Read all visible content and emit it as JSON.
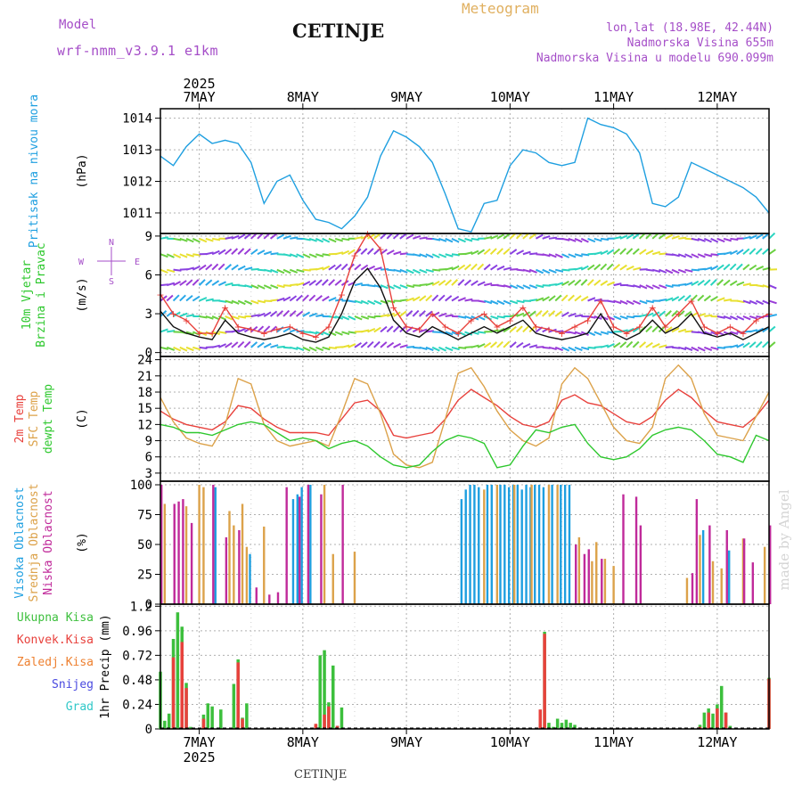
{
  "header": {
    "model_label": "Model",
    "model_name": "wrf-nmm_v3.9.1  e1km",
    "station": "CETINJE",
    "product": "Meteogram",
    "coords": "lon,lat (18.98E, 42.44N)",
    "elevation": "Nadmorska Visina 655m",
    "model_elevation": "Nadmorska Visina u modelu 690.099m",
    "watermark": "made by Angel",
    "footer_station": "CETINJE"
  },
  "time_axis": {
    "year": "2025",
    "day_labels": [
      "7MAY",
      "8MAY",
      "9MAY",
      "10MAY",
      "11MAY",
      "12MAY"
    ],
    "start_hour": 15,
    "end_hour": 156
  },
  "colors": {
    "pressure": "#1e9fe0",
    "temp2m": "#e8413c",
    "sfc_temp": "#dca24a",
    "dewpoint": "#2ec82e",
    "cloud_high": "#1e9fe0",
    "cloud_mid": "#dca24a",
    "cloud_low": "#c02a9a",
    "precip_total": "#3cbf3c",
    "precip_conv": "#e8413c",
    "wind_speed": "#111111",
    "gust": "#e8413c"
  },
  "chart_data": [
    {
      "type": "line",
      "id": "pressure",
      "ylabel_lines": [
        "Pritisak na nivou mora"
      ],
      "unit": "(hPa)",
      "ylim": [
        1010.35,
        1014.3
      ],
      "yticks": [
        1011,
        1012,
        1013,
        1014
      ],
      "grid": true,
      "series": [
        {
          "name": "",
          "x": [
            15,
            18,
            21,
            24,
            27,
            30,
            33,
            36,
            39,
            42,
            45,
            48,
            51,
            54,
            57,
            60,
            63,
            66,
            69,
            72,
            75,
            78,
            81,
            84,
            87,
            90,
            93,
            96,
            99,
            102,
            105,
            108,
            111,
            114,
            117,
            120,
            123,
            126,
            129,
            132,
            135,
            138,
            141,
            144,
            147,
            150,
            153,
            156
          ],
          "y": [
            1012.8,
            1012.5,
            1013.1,
            1013.5,
            1013.2,
            1013.3,
            1013.2,
            1012.6,
            1011.3,
            1012.0,
            1012.2,
            1011.4,
            1010.8,
            1010.7,
            1010.5,
            1010.9,
            1011.5,
            1012.8,
            1013.6,
            1013.4,
            1013.1,
            1012.6,
            1011.6,
            1010.5,
            1010.4,
            1011.3,
            1011.4,
            1012.5,
            1013.0,
            1012.9,
            1012.6,
            1012.5,
            1012.6,
            1014.0,
            1013.8,
            1013.7,
            1013.5,
            1012.9,
            1011.3,
            1011.2,
            1011.5,
            1012.6,
            1012.4,
            1012.2,
            1012.0,
            1011.8,
            1011.5,
            1011.0
          ]
        }
      ]
    },
    {
      "type": "line",
      "id": "wind",
      "ylabel_lines": [
        "10m Vjetar",
        "Brzina i Pravac"
      ],
      "unit": "(m/s)",
      "compass": [
        "N",
        "W",
        "E",
        "S"
      ],
      "ylim": [
        -0.3,
        9.2
      ],
      "yticks": [
        0,
        3,
        6,
        9
      ],
      "grid": true,
      "series": [
        {
          "name": "",
          "x": [
            15,
            18,
            21,
            24,
            27,
            30,
            33,
            36,
            39,
            42,
            45,
            48,
            51,
            54,
            57,
            60,
            63,
            66,
            69,
            72,
            75,
            78,
            81,
            84,
            87,
            90,
            93,
            96,
            99,
            102,
            105,
            108,
            111,
            114,
            117,
            120,
            123,
            126,
            129,
            132,
            135,
            138,
            141,
            144,
            147,
            150,
            153,
            156
          ],
          "y": [
            3.2,
            2.0,
            1.5,
            1.2,
            1.0,
            2.5,
            1.5,
            1.2,
            1.0,
            1.2,
            1.5,
            1.0,
            0.8,
            1.2,
            3.0,
            5.5,
            6.5,
            5.0,
            2.5,
            1.5,
            1.2,
            2.0,
            1.5,
            1.0,
            1.5,
            2.0,
            1.5,
            2.0,
            2.5,
            1.5,
            1.2,
            1.0,
            1.2,
            1.5,
            3.0,
            1.5,
            1.0,
            1.5,
            2.5,
            1.5,
            2.0,
            3.0,
            1.5,
            1.2,
            1.5,
            1.0,
            1.5,
            2.0
          ]
        },
        {
          "name": "",
          "x": [
            15,
            18,
            21,
            24,
            27,
            30,
            33,
            36,
            39,
            42,
            45,
            48,
            51,
            54,
            57,
            60,
            63,
            66,
            69,
            72,
            75,
            78,
            81,
            84,
            87,
            90,
            93,
            96,
            99,
            102,
            105,
            108,
            111,
            114,
            117,
            120,
            123,
            126,
            129,
            132,
            135,
            138,
            141,
            144,
            147,
            150,
            153,
            156
          ],
          "y": [
            4.5,
            3.0,
            2.5,
            1.5,
            1.5,
            3.5,
            2.0,
            1.8,
            1.5,
            1.8,
            2.0,
            1.5,
            1.2,
            2.0,
            4.5,
            7.5,
            9.2,
            8.0,
            3.5,
            2.0,
            1.8,
            3.0,
            2.0,
            1.5,
            2.5,
            3.0,
            2.0,
            2.5,
            3.5,
            2.0,
            1.8,
            1.5,
            2.0,
            2.5,
            4.0,
            2.0,
            1.5,
            2.0,
            3.5,
            2.0,
            3.0,
            4.0,
            2.0,
            1.5,
            2.0,
            1.5,
            2.5,
            3.0
          ]
        }
      ]
    },
    {
      "type": "line",
      "id": "temperature",
      "ylabel_lines": [
        "2m Temp",
        "SFC Temp",
        "dewpt Temp"
      ],
      "unit": "(C)",
      "ylim": [
        1.5,
        24.6
      ],
      "yticks": [
        3,
        6,
        9,
        12,
        15,
        18,
        21,
        24
      ],
      "grid": true,
      "series": [
        {
          "name": "2m Temp",
          "x": [
            15,
            18,
            21,
            24,
            27,
            30,
            33,
            36,
            39,
            42,
            45,
            48,
            51,
            54,
            57,
            60,
            63,
            66,
            69,
            72,
            75,
            78,
            81,
            84,
            87,
            90,
            93,
            96,
            99,
            102,
            105,
            108,
            111,
            114,
            117,
            120,
            123,
            126,
            129,
            132,
            135,
            138,
            141,
            144,
            147,
            150,
            153,
            156
          ],
          "y": [
            14.5,
            13.0,
            12.0,
            11.5,
            11.0,
            12.5,
            15.5,
            15.0,
            13.0,
            11.5,
            10.5,
            10.5,
            10.5,
            10.0,
            13.0,
            16.0,
            16.5,
            14.5,
            10.0,
            9.5,
            10.0,
            10.5,
            13.0,
            16.5,
            18.5,
            17.0,
            15.5,
            13.5,
            12.0,
            11.5,
            12.5,
            16.5,
            17.5,
            16.0,
            15.5,
            14.0,
            12.5,
            12.0,
            13.5,
            16.5,
            18.5,
            17.0,
            14.5,
            12.5,
            12.0,
            11.5,
            13.5,
            16.5
          ]
        },
        {
          "name": "SFC Temp",
          "x": [
            15,
            18,
            21,
            24,
            27,
            30,
            33,
            36,
            39,
            42,
            45,
            48,
            51,
            54,
            57,
            60,
            63,
            66,
            69,
            72,
            75,
            78,
            81,
            84,
            87,
            90,
            93,
            96,
            99,
            102,
            105,
            108,
            111,
            114,
            117,
            120,
            123,
            126,
            129,
            132,
            135,
            138,
            141,
            144,
            147,
            150,
            153,
            156
          ],
          "y": [
            17.0,
            12.5,
            9.5,
            8.5,
            8.0,
            12.0,
            20.5,
            19.5,
            12.0,
            9.0,
            8.0,
            8.5,
            9.0,
            8.0,
            14.0,
            20.5,
            19.5,
            14.0,
            6.5,
            4.5,
            4.0,
            5.0,
            13.0,
            21.5,
            22.5,
            19.0,
            14.5,
            11.0,
            9.0,
            8.0,
            9.5,
            19.5,
            22.5,
            20.5,
            16.0,
            11.5,
            9.0,
            8.5,
            11.5,
            20.5,
            23.0,
            20.5,
            14.0,
            10.0,
            9.5,
            9.0,
            13.5,
            18.0
          ]
        },
        {
          "name": "dewpt Temp",
          "x": [
            15,
            18,
            21,
            24,
            27,
            30,
            33,
            36,
            39,
            42,
            45,
            48,
            51,
            54,
            57,
            60,
            63,
            66,
            69,
            72,
            75,
            78,
            81,
            84,
            87,
            90,
            93,
            96,
            99,
            102,
            105,
            108,
            111,
            114,
            117,
            120,
            123,
            126,
            129,
            132,
            135,
            138,
            141,
            144,
            147,
            150,
            153,
            156
          ],
          "y": [
            12.0,
            11.5,
            10.5,
            10.5,
            10.0,
            11.0,
            12.0,
            12.5,
            12.0,
            10.5,
            9.0,
            9.5,
            9.0,
            7.5,
            8.5,
            9.0,
            8.0,
            6.0,
            4.5,
            4.0,
            4.5,
            7.0,
            9.0,
            10.0,
            9.5,
            8.5,
            4.0,
            4.5,
            8.0,
            11.0,
            10.5,
            11.5,
            12.0,
            8.5,
            6.0,
            5.5,
            6.0,
            7.5,
            10.0,
            11.0,
            11.5,
            11.0,
            9.0,
            6.5,
            6.0,
            5.0,
            10.0,
            9.0
          ]
        }
      ]
    },
    {
      "type": "bar",
      "id": "clouds",
      "ylabel_lines": [
        "Visoka Oblacnost",
        "Srednja Oblacnost",
        "Niska Oblacnost"
      ],
      "unit": "(%)",
      "ylim": [
        0,
        103
      ],
      "yticks": [
        0,
        25,
        50,
        75,
        100
      ],
      "grid": true,
      "series": [
        {
          "name": "Visoka Oblacnost",
          "x": [
            28,
            36,
            46,
            47,
            48,
            50,
            85,
            86,
            87,
            88,
            89,
            91,
            92,
            94,
            95,
            96,
            97,
            98,
            99,
            100,
            101,
            102,
            103,
            104,
            106,
            108,
            109,
            110,
            141,
            147
          ],
          "y": [
            98,
            42,
            88,
            92,
            98,
            100,
            88,
            96,
            100,
            100,
            98,
            100,
            100,
            100,
            100,
            98,
            100,
            100,
            96,
            100,
            98,
            100,
            100,
            98,
            100,
            100,
            100,
            100,
            62,
            45
          ]
        },
        {
          "name": "Srednja Oblacnost",
          "x": [
            16,
            21,
            24,
            25,
            31,
            32,
            34,
            35,
            39,
            53,
            55,
            60,
            90,
            93,
            97,
            101,
            105,
            107,
            112,
            115,
            116,
            118,
            120,
            137,
            140,
            143,
            145,
            150,
            155
          ],
          "y": [
            84,
            82,
            100,
            98,
            78,
            66,
            84,
            48,
            65,
            100,
            42,
            44,
            96,
            100,
            100,
            100,
            100,
            100,
            56,
            36,
            52,
            38,
            32,
            22,
            58,
            36,
            30,
            55,
            48
          ]
        },
        {
          "name": "Niska Oblacnost",
          "x": [
            15,
            18,
            19,
            20,
            22,
            27,
            30,
            33,
            37,
            40,
            42,
            44,
            47,
            49,
            52,
            57,
            111,
            113,
            114,
            117,
            122,
            125,
            126,
            138,
            139,
            142,
            146,
            150,
            152,
            156
          ],
          "y": [
            100,
            84,
            86,
            88,
            68,
            100,
            56,
            62,
            14,
            8,
            10,
            98,
            90,
            100,
            92,
            100,
            50,
            42,
            46,
            38,
            92,
            90,
            66,
            26,
            88,
            66,
            62,
            55,
            35,
            66
          ]
        }
      ]
    },
    {
      "type": "bar",
      "id": "precipitation",
      "ylabel_lines": [
        "Ukupna Kisa",
        "Konvek.Kisa",
        "Zaledj.Kisa",
        "Snijeg",
        "Grad"
      ],
      "unit": "1hr Precip (mm)",
      "ylim": [
        0,
        1.22
      ],
      "yticks": [
        0,
        0.24,
        0.48,
        0.72,
        0.96,
        1.2
      ],
      "grid": true,
      "series": [
        {
          "name": "Ukupna Kisa",
          "x": [
            15,
            16,
            17,
            18,
            19,
            20,
            21,
            22,
            25,
            26,
            27,
            29,
            32,
            33,
            34,
            35,
            51,
            52,
            53,
            54,
            55,
            56,
            57,
            103,
            104,
            105,
            106,
            107,
            108,
            109,
            110,
            111,
            140,
            141,
            142,
            143,
            144,
            145,
            146,
            147,
            156
          ],
          "y": [
            0.56,
            0.08,
            0.15,
            0.88,
            1.14,
            1.0,
            0.45,
            0.02,
            0.14,
            0.25,
            0.22,
            0.19,
            0.44,
            0.68,
            0.11,
            0.25,
            0.04,
            0.72,
            0.77,
            0.26,
            0.62,
            0.03,
            0.21,
            0.05,
            0.95,
            0.06,
            0.02,
            0.1,
            0.06,
            0.09,
            0.06,
            0.04,
            0.04,
            0.16,
            0.2,
            0.15,
            0.24,
            0.42,
            0.16,
            0.03,
            0.5
          ]
        },
        {
          "name": "Konvek.Kisa",
          "x": [
            18,
            20,
            21,
            25,
            33,
            34,
            51,
            53,
            54,
            56,
            103,
            104,
            140,
            142,
            144,
            146,
            156
          ],
          "y": [
            0.7,
            0.85,
            0.4,
            0.1,
            0.65,
            0.1,
            0.05,
            0.14,
            0.22,
            0.03,
            0.19,
            0.93,
            0.02,
            0.16,
            0.2,
            0.16,
            0.49
          ]
        }
      ]
    }
  ]
}
